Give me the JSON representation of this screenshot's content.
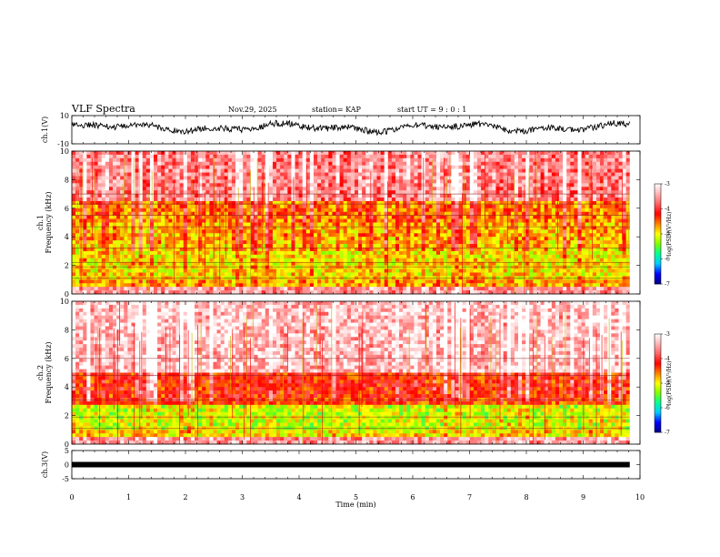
{
  "header": {
    "title": "VLF Spectra",
    "date": "Nov.29, 2025",
    "station": "station= KAP",
    "start": "start  UT  =   9 : 0  : 1"
  },
  "chart_data": {
    "type": "heatmap",
    "title": "VLF Spectra",
    "xlabel": "Time  (min)",
    "xlim": [
      0,
      10
    ],
    "xticks": [
      "0",
      "1",
      "2",
      "3",
      "4",
      "5",
      "6",
      "7",
      "8",
      "9",
      "10"
    ],
    "data_end_min": 9.82,
    "panels": [
      {
        "id": "ch1-waveform",
        "kind": "line",
        "ylabel": "ch.1(V)",
        "ylim": [
          -10,
          10
        ],
        "yticks": [
          "10",
          "-10"
        ],
        "series_mean": 1.5,
        "series_amplitude": 4.5,
        "series_color": "#000000"
      },
      {
        "id": "ch1-spectrogram",
        "kind": "heatmap",
        "ylabel": "ch.1\nFrequency  (kHz)",
        "ylim": [
          0,
          10
        ],
        "yticks": [
          "0",
          "2",
          "4",
          "6",
          "8",
          "10"
        ],
        "bands_khz": [
          {
            "f0": 0.0,
            "f1": 0.5,
            "level": -3.6,
            "label": "red/pink noise below 0.5 kHz"
          },
          {
            "f0": 0.5,
            "f1": 1.0,
            "level": -4.8
          },
          {
            "f0": 1.0,
            "f1": 3.5,
            "level": -5.0
          },
          {
            "f0": 3.5,
            "f1": 5.0,
            "level": -4.9
          },
          {
            "f0": 5.0,
            "f1": 6.5,
            "level": -4.7
          },
          {
            "f0": 6.5,
            "f1": 10.0,
            "level": -3.8
          }
        ],
        "tone_lines_khz": [
          1.1,
          1.9,
          2.2,
          3.2,
          4.7,
          5.5,
          6.3,
          7.0
        ],
        "colorbar": {
          "label": "log(PSD)(V²/Hz)",
          "range": [
            -7,
            -3
          ],
          "ticks": [
            "-3",
            "-4",
            "-5",
            "-6",
            "-7"
          ]
        }
      },
      {
        "id": "ch2-spectrogram",
        "kind": "heatmap",
        "ylabel": "ch.2\nFrequency  (kHz)",
        "ylim": [
          0,
          10
        ],
        "yticks": [
          "0",
          "2",
          "4",
          "6",
          "8",
          "10"
        ],
        "bands_khz": [
          {
            "f0": 0.0,
            "f1": 0.5,
            "level": -3.6
          },
          {
            "f0": 0.5,
            "f1": 1.0,
            "level": -5.0
          },
          {
            "f0": 1.0,
            "f1": 2.8,
            "level": -5.2
          },
          {
            "f0": 2.8,
            "f1": 5.0,
            "level": -4.4
          },
          {
            "f0": 5.0,
            "f1": 10.0,
            "level": -3.5
          }
        ],
        "tone_lines_khz": [
          1.1,
          1.9,
          3.1,
          4.8,
          6.0
        ],
        "colorbar": {
          "label": "log(PSD)(V²/Hz)",
          "range": [
            -7,
            -3
          ],
          "ticks": [
            "-3",
            "-4",
            "-5",
            "-6",
            "-7"
          ]
        }
      },
      {
        "id": "ch3-waveform",
        "kind": "line",
        "ylabel": "ch.3(V)",
        "ylim": [
          -5,
          5
        ],
        "yticks": [
          "5",
          "0",
          "-5"
        ],
        "series_mean": 0.0,
        "series_amplitude": 0.4,
        "series_color": "#000000"
      }
    ]
  },
  "colors": {
    "colormap": [
      "#000080",
      "#0000ff",
      "#00c8ff",
      "#00ff96",
      "#7fff00",
      "#ffff00",
      "#ff8000",
      "#ff0000",
      "#ff6464",
      "#ffb4b4",
      "#ffffff"
    ]
  }
}
